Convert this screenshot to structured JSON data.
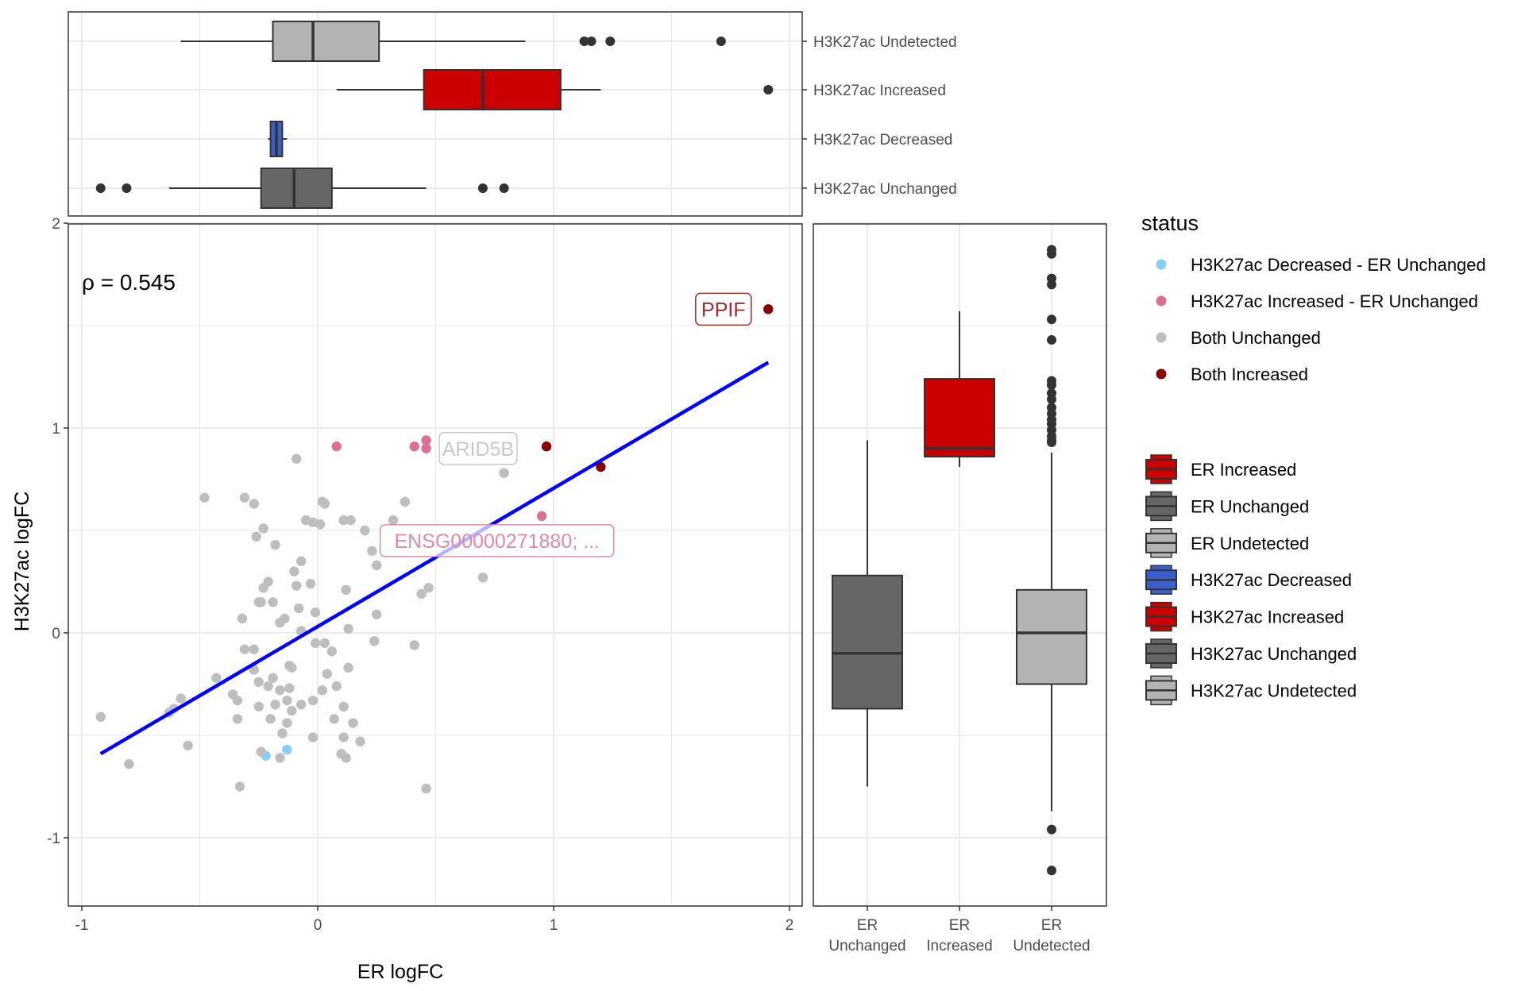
{
  "chart_data": [
    {
      "id": "scatter",
      "type": "scatter",
      "xlabel": "ER logFC",
      "ylabel": "H3K27ac logFC",
      "xlim": [
        -1.06,
        2.05
      ],
      "ylim": [
        -1.3,
        2.0
      ],
      "x_ticks": [
        -1,
        0,
        1,
        2
      ],
      "y_ticks": [
        -1,
        0,
        1,
        2
      ],
      "grid": true,
      "annotation": "ρ = 0.545",
      "regression_line": {
        "color": "#0000ff",
        "x": [
          -0.92,
          1.91
        ],
        "y": [
          -0.59,
          1.32
        ]
      },
      "status_colors": {
        "H3K27ac Decreased - ER Unchanged": "#87cefa",
        "H3K27ac Increased - ER Unchanged": "#db7093",
        "Both Unchanged": "#bebebe",
        "Both Increased": "#8b0000"
      },
      "points": [
        {
          "x": 1.91,
          "y": 1.58,
          "status": "Both Increased",
          "label": "PPIF"
        },
        {
          "x": 0.97,
          "y": 0.91,
          "status": "Both Increased"
        },
        {
          "x": 1.2,
          "y": 0.81,
          "status": "Both Increased"
        },
        {
          "x": 0.08,
          "y": 0.91,
          "status": "H3K27ac Increased - ER Unchanged"
        },
        {
          "x": 0.41,
          "y": 0.91,
          "status": "H3K27ac Increased - ER Unchanged"
        },
        {
          "x": 0.46,
          "y": 0.94,
          "status": "H3K27ac Increased - ER Unchanged",
          "label": "ARID5B"
        },
        {
          "x": 0.46,
          "y": 0.9,
          "status": "H3K27ac Increased - ER Unchanged"
        },
        {
          "x": 0.95,
          "y": 0.57,
          "status": "H3K27ac Increased - ER Unchanged",
          "label": "ENSG00000271880; ..."
        },
        {
          "x": -0.22,
          "y": -0.6,
          "status": "H3K27ac Decreased - ER Unchanged"
        },
        {
          "x": -0.13,
          "y": -0.57,
          "status": "H3K27ac Decreased - ER Unchanged"
        },
        {
          "x": 0.79,
          "y": 0.78,
          "status": "Both Unchanged"
        },
        {
          "x": -0.09,
          "y": 0.85,
          "status": "Both Unchanged"
        },
        {
          "x": -0.48,
          "y": 0.66,
          "status": "Both Unchanged"
        },
        {
          "x": -0.31,
          "y": 0.66,
          "status": "Both Unchanged"
        },
        {
          "x": -0.27,
          "y": 0.63,
          "status": "Both Unchanged"
        },
        {
          "x": 0.02,
          "y": 0.64,
          "status": "Both Unchanged"
        },
        {
          "x": 0.03,
          "y": 0.63,
          "status": "Both Unchanged"
        },
        {
          "x": 0.37,
          "y": 0.64,
          "status": "Both Unchanged"
        },
        {
          "x": -0.05,
          "y": 0.55,
          "status": "Both Unchanged"
        },
        {
          "x": -0.02,
          "y": 0.54,
          "status": "Both Unchanged"
        },
        {
          "x": 0.01,
          "y": 0.53,
          "status": "Both Unchanged"
        },
        {
          "x": 0.11,
          "y": 0.55,
          "status": "Both Unchanged"
        },
        {
          "x": 0.14,
          "y": 0.55,
          "status": "Both Unchanged"
        },
        {
          "x": 0.2,
          "y": 0.5,
          "status": "Both Unchanged"
        },
        {
          "x": 0.32,
          "y": 0.55,
          "status": "Both Unchanged"
        },
        {
          "x": -0.23,
          "y": 0.51,
          "status": "Both Unchanged"
        },
        {
          "x": -0.26,
          "y": 0.47,
          "status": "Both Unchanged"
        },
        {
          "x": -0.18,
          "y": 0.43,
          "status": "Both Unchanged"
        },
        {
          "x": 0.23,
          "y": 0.4,
          "status": "Both Unchanged"
        },
        {
          "x": 0.25,
          "y": 0.33,
          "status": "Both Unchanged"
        },
        {
          "x": -0.07,
          "y": 0.35,
          "status": "Both Unchanged"
        },
        {
          "x": -0.1,
          "y": 0.3,
          "status": "Both Unchanged"
        },
        {
          "x": 0.7,
          "y": 0.27,
          "status": "Both Unchanged"
        },
        {
          "x": -0.21,
          "y": 0.25,
          "status": "Both Unchanged"
        },
        {
          "x": -0.23,
          "y": 0.22,
          "status": "Both Unchanged"
        },
        {
          "x": -0.09,
          "y": 0.23,
          "status": "Both Unchanged"
        },
        {
          "x": -0.03,
          "y": 0.24,
          "status": "Both Unchanged"
        },
        {
          "x": 0.12,
          "y": 0.21,
          "status": "Both Unchanged"
        },
        {
          "x": 0.47,
          "y": 0.22,
          "status": "Both Unchanged"
        },
        {
          "x": 0.44,
          "y": 0.19,
          "status": "Both Unchanged"
        },
        {
          "x": -0.25,
          "y": 0.15,
          "status": "Both Unchanged"
        },
        {
          "x": -0.24,
          "y": 0.15,
          "status": "Both Unchanged"
        },
        {
          "x": -0.19,
          "y": 0.15,
          "status": "Both Unchanged"
        },
        {
          "x": -0.08,
          "y": 0.12,
          "status": "Both Unchanged"
        },
        {
          "x": -0.01,
          "y": 0.1,
          "status": "Both Unchanged"
        },
        {
          "x": 0.25,
          "y": 0.09,
          "status": "Both Unchanged"
        },
        {
          "x": -0.32,
          "y": 0.07,
          "status": "Both Unchanged"
        },
        {
          "x": -0.14,
          "y": 0.07,
          "status": "Both Unchanged"
        },
        {
          "x": -0.16,
          "y": 0.05,
          "status": "Both Unchanged"
        },
        {
          "x": 0.13,
          "y": 0.02,
          "status": "Both Unchanged"
        },
        {
          "x": -0.27,
          "y": -0.08,
          "status": "Both Unchanged"
        },
        {
          "x": -0.07,
          "y": 0.01,
          "status": "Both Unchanged"
        },
        {
          "x": 0.24,
          "y": -0.04,
          "status": "Both Unchanged"
        },
        {
          "x": 0.41,
          "y": -0.06,
          "status": "Both Unchanged"
        },
        {
          "x": -0.01,
          "y": -0.05,
          "status": "Both Unchanged"
        },
        {
          "x": 0.03,
          "y": -0.05,
          "status": "Both Unchanged"
        },
        {
          "x": -0.31,
          "y": -0.08,
          "status": "Both Unchanged"
        },
        {
          "x": 0.06,
          "y": -0.09,
          "status": "Both Unchanged"
        },
        {
          "x": 0.13,
          "y": -0.17,
          "status": "Both Unchanged"
        },
        {
          "x": -0.12,
          "y": -0.16,
          "status": "Both Unchanged"
        },
        {
          "x": -0.11,
          "y": -0.17,
          "status": "Both Unchanged"
        },
        {
          "x": -0.27,
          "y": -0.18,
          "status": "Both Unchanged"
        },
        {
          "x": -0.19,
          "y": -0.22,
          "status": "Both Unchanged"
        },
        {
          "x": -0.43,
          "y": -0.22,
          "status": "Both Unchanged"
        },
        {
          "x": -0.25,
          "y": -0.24,
          "status": "Both Unchanged"
        },
        {
          "x": 0.04,
          "y": -0.2,
          "status": "Both Unchanged"
        },
        {
          "x": 0.08,
          "y": -0.26,
          "status": "Both Unchanged"
        },
        {
          "x": -0.36,
          "y": -0.3,
          "status": "Both Unchanged"
        },
        {
          "x": -0.21,
          "y": -0.26,
          "status": "Both Unchanged"
        },
        {
          "x": -0.16,
          "y": -0.28,
          "status": "Both Unchanged"
        },
        {
          "x": -0.12,
          "y": -0.27,
          "status": "Both Unchanged"
        },
        {
          "x": -0.02,
          "y": -0.33,
          "status": "Both Unchanged"
        },
        {
          "x": 0.02,
          "y": -0.28,
          "status": "Both Unchanged"
        },
        {
          "x": -0.34,
          "y": -0.33,
          "status": "Both Unchanged"
        },
        {
          "x": -0.13,
          "y": -0.33,
          "status": "Both Unchanged"
        },
        {
          "x": -0.07,
          "y": -0.35,
          "status": "Both Unchanged"
        },
        {
          "x": -0.25,
          "y": -0.36,
          "status": "Both Unchanged"
        },
        {
          "x": -0.18,
          "y": -0.35,
          "status": "Both Unchanged"
        },
        {
          "x": 0.11,
          "y": -0.36,
          "status": "Both Unchanged"
        },
        {
          "x": -0.2,
          "y": -0.42,
          "status": "Both Unchanged"
        },
        {
          "x": -0.11,
          "y": -0.38,
          "status": "Both Unchanged"
        },
        {
          "x": -0.61,
          "y": -0.37,
          "status": "Both Unchanged"
        },
        {
          "x": -0.63,
          "y": -0.39,
          "status": "Both Unchanged"
        },
        {
          "x": -0.58,
          "y": -0.32,
          "status": "Both Unchanged"
        },
        {
          "x": -0.34,
          "y": -0.42,
          "status": "Both Unchanged"
        },
        {
          "x": -0.13,
          "y": -0.44,
          "status": "Both Unchanged"
        },
        {
          "x": 0.07,
          "y": -0.42,
          "status": "Both Unchanged"
        },
        {
          "x": 0.15,
          "y": -0.44,
          "status": "Both Unchanged"
        },
        {
          "x": -0.92,
          "y": -0.41,
          "status": "Both Unchanged"
        },
        {
          "x": -0.15,
          "y": -0.49,
          "status": "Both Unchanged"
        },
        {
          "x": -0.02,
          "y": -0.51,
          "status": "Both Unchanged"
        },
        {
          "x": 0.11,
          "y": -0.51,
          "status": "Both Unchanged"
        },
        {
          "x": 0.18,
          "y": -0.53,
          "status": "Both Unchanged"
        },
        {
          "x": -0.55,
          "y": -0.55,
          "status": "Both Unchanged"
        },
        {
          "x": -0.24,
          "y": -0.58,
          "status": "Both Unchanged"
        },
        {
          "x": -0.16,
          "y": -0.61,
          "status": "Both Unchanged"
        },
        {
          "x": 0.1,
          "y": -0.59,
          "status": "Both Unchanged"
        },
        {
          "x": 0.12,
          "y": -0.61,
          "status": "Both Unchanged"
        },
        {
          "x": -0.8,
          "y": -0.64,
          "status": "Both Unchanged"
        },
        {
          "x": -0.33,
          "y": -0.75,
          "status": "Both Unchanged"
        },
        {
          "x": 0.46,
          "y": -0.76,
          "status": "Both Unchanged"
        }
      ],
      "labels": [
        {
          "text": "PPIF",
          "color": "#a52a2a",
          "x": 1.72,
          "y": 1.58
        },
        {
          "text": "ARID5B",
          "color": "#c8c8c8",
          "x": 0.68,
          "y": 0.9
        },
        {
          "text": "ENSG00000271880; ...",
          "color": "#e08aa6",
          "x": 0.76,
          "y": 0.45
        }
      ]
    },
    {
      "id": "top-boxplot",
      "type": "boxplot",
      "orientation": "horizontal",
      "value_axis": "ER logFC",
      "categories": [
        "H3K27ac Undetected",
        "H3K27ac Increased",
        "H3K27ac Decreased",
        "H3K27ac Unchanged"
      ],
      "boxes": [
        {
          "category": "H3K27ac Undetected",
          "fill": "#b3b3b3",
          "whisker_low": -0.58,
          "q1": -0.19,
          "median": -0.02,
          "q3": 0.26,
          "whisker_high": 0.88,
          "outliers": [
            1.13,
            1.16,
            1.24,
            1.71
          ]
        },
        {
          "category": "H3K27ac Increased",
          "fill": "#cc0000",
          "whisker_low": 0.08,
          "q1": 0.45,
          "median": 0.7,
          "q3": 1.03,
          "whisker_high": 1.2,
          "outliers": [
            1.91
          ]
        },
        {
          "category": "H3K27ac Decreased",
          "fill": "#3a5fcd",
          "whisker_low": -0.21,
          "q1": -0.2,
          "median": -0.175,
          "q3": -0.15,
          "whisker_high": -0.13,
          "outliers": []
        },
        {
          "category": "H3K27ac Unchanged",
          "fill": "#666666",
          "whisker_low": -0.63,
          "q1": -0.24,
          "median": -0.1,
          "q3": 0.06,
          "whisker_high": 0.46,
          "outliers": [
            -0.92,
            -0.81,
            0.7,
            0.79
          ]
        }
      ]
    },
    {
      "id": "right-boxplot",
      "type": "boxplot",
      "orientation": "vertical",
      "value_axis": "H3K27ac logFC",
      "categories": [
        "ER\nUnchanged",
        "ER\nIncreased",
        "ER\nUndetected"
      ],
      "category_lines": [
        [
          "ER",
          "Unchanged"
        ],
        [
          "ER",
          "Increased"
        ],
        [
          "ER",
          "Undetected"
        ]
      ],
      "boxes": [
        {
          "category": "ER Unchanged",
          "fill": "#666666",
          "whisker_low": -0.75,
          "q1": -0.37,
          "median": -0.1,
          "q3": 0.28,
          "whisker_high": 0.94,
          "outliers": []
        },
        {
          "category": "ER Increased",
          "fill": "#cc0000",
          "whisker_low": 0.81,
          "q1": 0.86,
          "median": 0.9,
          "q3": 1.24,
          "whisker_high": 1.57,
          "outliers": []
        },
        {
          "category": "ER Undetected",
          "fill": "#b3b3b3",
          "whisker_low": -0.87,
          "q1": -0.25,
          "median": 0.0,
          "q3": 0.21,
          "whisker_high": 0.88,
          "outliers": [
            1.87,
            1.85,
            1.73,
            1.7,
            1.53,
            1.43,
            1.23,
            1.21,
            1.17,
            1.14,
            1.1,
            1.07,
            1.04,
            1.02,
            0.99,
            0.96,
            0.94,
            0.93,
            -0.96,
            -1.16
          ]
        }
      ]
    }
  ],
  "legends": {
    "status": {
      "title": "status",
      "items": [
        {
          "label": "H3K27ac Decreased - ER Unchanged",
          "color": "#87cefa"
        },
        {
          "label": "H3K27ac Increased - ER Unchanged",
          "color": "#db7093"
        },
        {
          "label": "Both Unchanged",
          "color": "#bebebe"
        },
        {
          "label": "Both Increased",
          "color": "#8b0000"
        }
      ]
    },
    "fill": {
      "items": [
        {
          "label": "ER Increased",
          "color": "#cc0000"
        },
        {
          "label": "ER Unchanged",
          "color": "#666666"
        },
        {
          "label": "ER Undetected",
          "color": "#b3b3b3"
        },
        {
          "label": "H3K27ac Decreased",
          "color": "#3a5fcd"
        },
        {
          "label": "H3K27ac Increased",
          "color": "#cc0000"
        },
        {
          "label": "H3K27ac Unchanged",
          "color": "#666666"
        },
        {
          "label": "H3K27ac Undetected",
          "color": "#b3b3b3"
        }
      ]
    }
  }
}
